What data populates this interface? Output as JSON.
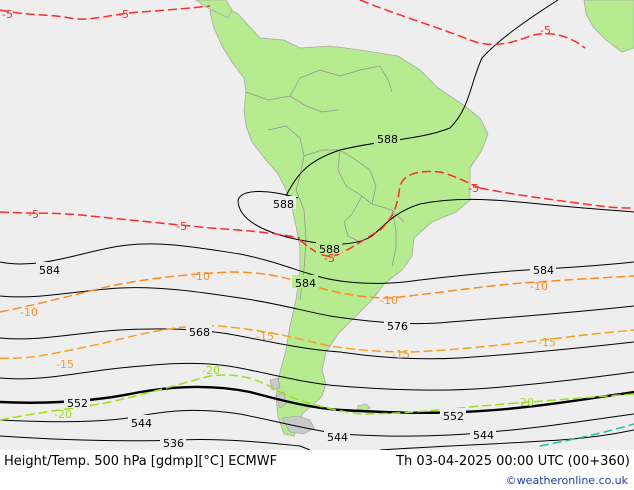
{
  "footer": {
    "title": "Height/Temp. 500 hPa [gdmp][°C] ECMWF",
    "valid_time": "Th 03-04-2025 00:00 UTC (00+360)",
    "credit": "©weatheronline.co.uk"
  },
  "colors": {
    "ocean": "#eeeeee",
    "land": "#b7eb90",
    "border": "#9a9a9a",
    "height_contour": "#000000",
    "temp_warm": "#ff2a2a",
    "temp_minus10": "#ff8a1f",
    "temp_minus15": "#f4a021",
    "temp_minus20": "#99e01a",
    "temp_minus25": "#19c3a0"
  },
  "height_labels": [
    "588",
    "588",
    "588",
    "584",
    "584",
    "584",
    "576",
    "568",
    "552",
    "552",
    "544",
    "544",
    "544",
    "536"
  ],
  "temp_labels": [
    "-5",
    "-5",
    "-5",
    "-5",
    "-5",
    "-5",
    "-5",
    "-10",
    "-10",
    "-10",
    "-10",
    "-15",
    "-15",
    "-15",
    "-15",
    "-20",
    "-20",
    "-20"
  ]
}
